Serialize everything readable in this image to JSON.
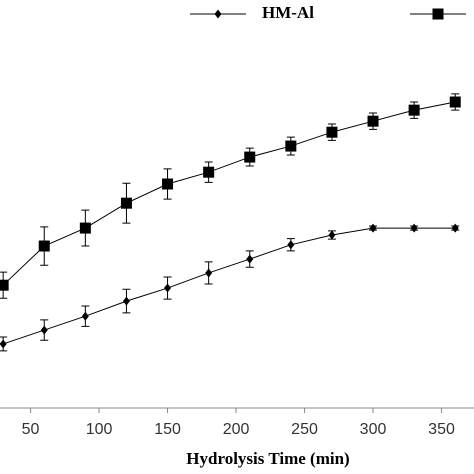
{
  "chart_data": {
    "type": "line",
    "x_label": "Hydrolysis Time (min)",
    "x": [
      30,
      60,
      90,
      120,
      150,
      180,
      210,
      240,
      270,
      300,
      330,
      360
    ],
    "xlim": [
      27.7,
      373.7
    ],
    "xticks": [
      50,
      100,
      150,
      200,
      250,
      300,
      350
    ],
    "ylim": [
      0,
      100
    ],
    "series": [
      {
        "color": "#000000",
        "marker": "square",
        "values": [
          30.1,
          39.7,
          44.1,
          50.2,
          54.9,
          57.8,
          61.5,
          64.2,
          67.6,
          70.3,
          73.0,
          75.0
        ],
        "errors": [
          3.2,
          4.7,
          4.4,
          4.9,
          3.7,
          2.5,
          2.2,
          2.2,
          2.0,
          2.0,
          2.0,
          2.0
        ]
      },
      {
        "name": "HM-Al",
        "color": "#000000",
        "marker": "diamond",
        "values": [
          15.7,
          19.1,
          22.5,
          26.2,
          29.4,
          33.1,
          36.5,
          40.0,
          42.4,
          44.1,
          44.1,
          44.1
        ],
        "errors": [
          1.7,
          2.5,
          2.5,
          2.9,
          2.7,
          2.7,
          2.0,
          1.5,
          1.0,
          0.5,
          0.5,
          0.5
        ]
      }
    ]
  }
}
